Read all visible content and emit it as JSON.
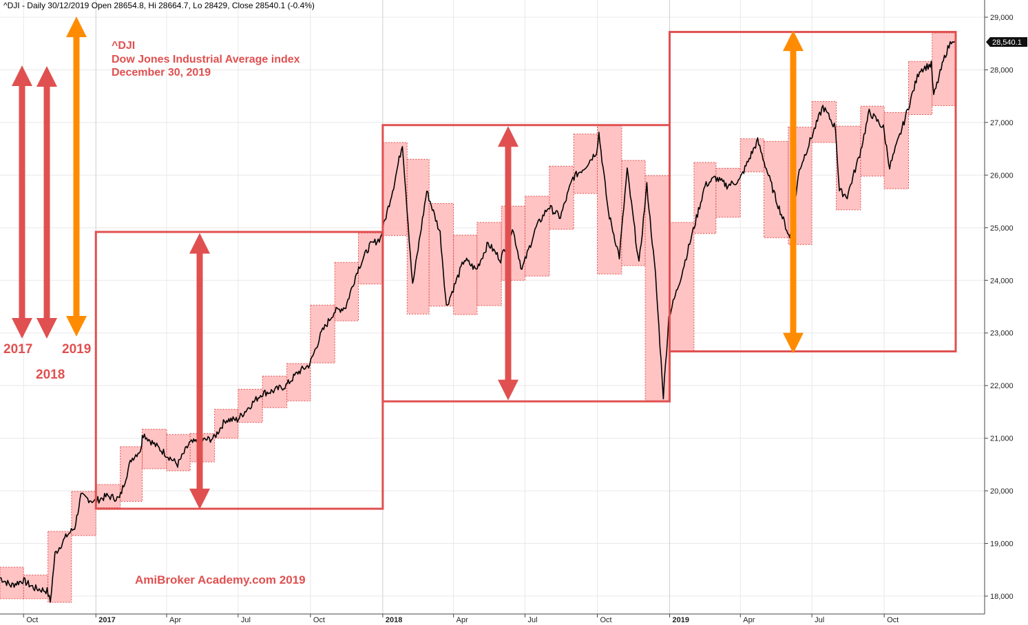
{
  "header": {
    "symbol_line": "^DJI - Daily 30/12/2019 Open 28654.8, Hi 28664.7, Lo 28429, Close 28540.1 (-0.4%)"
  },
  "annotation": {
    "line1": "^DJI",
    "line2": "Dow Jones Industrial Average index",
    "line3": "December 30, 2019",
    "watermark": "AmiBroker Academy.com   2019"
  },
  "year_labels": [
    "2017",
    "2018",
    "2019"
  ],
  "last_price_tag": "28,540.1",
  "colors": {
    "red": "#e05050",
    "orange": "#ff8c00",
    "fill": "#ffbcbc",
    "candle": "#000000",
    "grid": "#e8e8e8"
  },
  "chart_data": {
    "type": "line",
    "title": "^DJI Dow Jones Industrial Average index",
    "x_ticks": [
      "Oct",
      "2017",
      "Apr",
      "Jul",
      "Oct",
      "2018",
      "Apr",
      "Jul",
      "Oct",
      "2019",
      "Apr",
      "Jul",
      "Oct"
    ],
    "y_ticks": [
      "18,000",
      "19,000",
      "20,000",
      "21,000",
      "22,000",
      "23,000",
      "24,000",
      "25,000",
      "26,000",
      "27,000",
      "28,000",
      "29,000"
    ],
    "ylim": [
      17850,
      29150
    ],
    "series": [
      {
        "values": [
          [
            "2016-09-01",
            18350
          ],
          [
            "2016-09-15",
            18200
          ],
          [
            "2016-09-30",
            18300
          ],
          [
            "2016-10-15",
            18150
          ],
          [
            "2016-10-31",
            18100
          ],
          [
            "2016-11-04",
            17890
          ],
          [
            "2016-11-10",
            18800
          ],
          [
            "2016-11-25",
            19150
          ],
          [
            "2016-12-05",
            19300
          ],
          [
            "2016-12-13",
            19900
          ],
          [
            "2016-12-30",
            19800
          ],
          [
            "2017-01-15",
            19900
          ],
          [
            "2017-01-31",
            19850
          ],
          [
            "2017-02-15",
            20600
          ],
          [
            "2017-02-28",
            20800
          ],
          [
            "2017-03-01",
            21100
          ],
          [
            "2017-03-15",
            20900
          ],
          [
            "2017-03-31",
            20700
          ],
          [
            "2017-04-15",
            20500
          ],
          [
            "2017-04-30",
            20900
          ],
          [
            "2017-05-15",
            20950
          ],
          [
            "2017-05-31",
            21000
          ],
          [
            "2017-06-15",
            21350
          ],
          [
            "2017-06-30",
            21350
          ],
          [
            "2017-07-15",
            21600
          ],
          [
            "2017-07-31",
            21850
          ],
          [
            "2017-08-15",
            21900
          ],
          [
            "2017-08-31",
            22000
          ],
          [
            "2017-09-15",
            22250
          ],
          [
            "2017-09-30",
            22400
          ],
          [
            "2017-10-15",
            23000
          ],
          [
            "2017-10-31",
            23400
          ],
          [
            "2017-11-15",
            23500
          ],
          [
            "2017-11-30",
            24200
          ],
          [
            "2017-12-15",
            24650
          ],
          [
            "2017-12-29",
            24800
          ],
          [
            "2018-01-15",
            25800
          ],
          [
            "2018-01-26",
            26600
          ],
          [
            "2018-02-08",
            23900
          ],
          [
            "2018-02-26",
            25700
          ],
          [
            "2018-03-15",
            24900
          ],
          [
            "2018-03-23",
            23500
          ],
          [
            "2018-04-15",
            24400
          ],
          [
            "2018-04-30",
            24200
          ],
          [
            "2018-05-15",
            24700
          ],
          [
            "2018-05-31",
            24400
          ],
          [
            "2018-06-15",
            25000
          ],
          [
            "2018-06-27",
            24200
          ],
          [
            "2018-07-15",
            25000
          ],
          [
            "2018-07-31",
            25400
          ],
          [
            "2018-08-15",
            25200
          ],
          [
            "2018-08-31",
            25950
          ],
          [
            "2018-09-15",
            26150
          ],
          [
            "2018-09-30",
            26450
          ],
          [
            "2018-10-03",
            26800
          ],
          [
            "2018-10-15",
            25300
          ],
          [
            "2018-10-29",
            24450
          ],
          [
            "2018-11-08",
            26100
          ],
          [
            "2018-11-23",
            24300
          ],
          [
            "2018-12-03",
            25800
          ],
          [
            "2018-12-14",
            24100
          ],
          [
            "2018-12-24",
            21800
          ],
          [
            "2018-12-31",
            23300
          ],
          [
            "2019-01-15",
            24050
          ],
          [
            "2019-01-31",
            24950
          ],
          [
            "2019-02-15",
            25800
          ],
          [
            "2019-02-28",
            25950
          ],
          [
            "2019-03-15",
            25800
          ],
          [
            "2019-03-31",
            25900
          ],
          [
            "2019-04-15",
            26400
          ],
          [
            "2019-04-23",
            26650
          ],
          [
            "2019-05-15",
            25600
          ],
          [
            "2019-06-03",
            24800
          ],
          [
            "2019-06-15",
            26100
          ],
          [
            "2019-06-30",
            26700
          ],
          [
            "2019-07-15",
            27300
          ],
          [
            "2019-07-31",
            26900
          ],
          [
            "2019-08-05",
            25700
          ],
          [
            "2019-08-15",
            25600
          ],
          [
            "2019-08-31",
            26400
          ],
          [
            "2019-09-12",
            27200
          ],
          [
            "2019-09-30",
            26900
          ],
          [
            "2019-10-08",
            26150
          ],
          [
            "2019-10-25",
            26950
          ],
          [
            "2019-11-15",
            28000
          ],
          [
            "2019-11-30",
            28100
          ],
          [
            "2019-12-03",
            27500
          ],
          [
            "2019-12-18",
            28300
          ],
          [
            "2019-12-27",
            28600
          ],
          [
            "2019-12-30",
            28540.1
          ]
        ]
      }
    ],
    "yearly_boxes": [
      {
        "year": "2017",
        "low": 19660,
        "high": 24920
      },
      {
        "year": "2018",
        "low": 21700,
        "high": 26950
      },
      {
        "year": "2019",
        "low": 22650,
        "high": 28720
      }
    ],
    "monthly_ranges": [
      [
        "2016-09-01",
        17950,
        18550
      ],
      [
        "2016-10-01",
        17950,
        18400
      ],
      [
        "2016-11-01",
        17880,
        19230
      ],
      [
        "2016-12-01",
        19150,
        19990
      ],
      [
        "2017-01-01",
        19680,
        20120
      ],
      [
        "2017-02-01",
        19800,
        20840
      ],
      [
        "2017-03-01",
        20420,
        21170
      ],
      [
        "2017-04-01",
        20380,
        21070
      ],
      [
        "2017-05-01",
        20550,
        21090
      ],
      [
        "2017-06-01",
        21000,
        21550
      ],
      [
        "2017-07-01",
        21300,
        21930
      ],
      [
        "2017-08-01",
        21580,
        22180
      ],
      [
        "2017-09-01",
        21710,
        22420
      ],
      [
        "2017-10-01",
        22430,
        23530
      ],
      [
        "2017-11-01",
        23230,
        24340
      ],
      [
        "2017-12-01",
        23930,
        24900
      ],
      [
        "2018-01-01",
        24850,
        26620
      ],
      [
        "2018-02-01",
        23360,
        26300
      ],
      [
        "2018-03-01",
        23510,
        25460
      ],
      [
        "2018-04-01",
        23350,
        24860
      ],
      [
        "2018-05-01",
        23520,
        25100
      ],
      [
        "2018-06-01",
        24000,
        25410
      ],
      [
        "2018-07-01",
        24080,
        25600
      ],
      [
        "2018-08-01",
        24970,
        26170
      ],
      [
        "2018-09-01",
        25650,
        26780
      ],
      [
        "2018-10-01",
        24120,
        26960
      ],
      [
        "2018-11-01",
        24280,
        26280
      ],
      [
        "2018-12-01",
        21710,
        25990
      ],
      [
        "2019-01-01",
        22660,
        25100
      ],
      [
        "2019-02-01",
        24890,
        26240
      ],
      [
        "2019-03-01",
        25200,
        26130
      ],
      [
        "2019-04-01",
        26060,
        26690
      ],
      [
        "2019-05-01",
        24810,
        26640
      ],
      [
        "2019-06-01",
        24680,
        26910
      ],
      [
        "2019-07-01",
        26620,
        27400
      ],
      [
        "2019-08-01",
        25340,
        26930
      ],
      [
        "2019-09-01",
        25980,
        27310
      ],
      [
        "2019-10-01",
        25740,
        27190
      ],
      [
        "2019-11-01",
        27150,
        28160
      ],
      [
        "2019-12-01",
        27320,
        28700
      ]
    ]
  }
}
